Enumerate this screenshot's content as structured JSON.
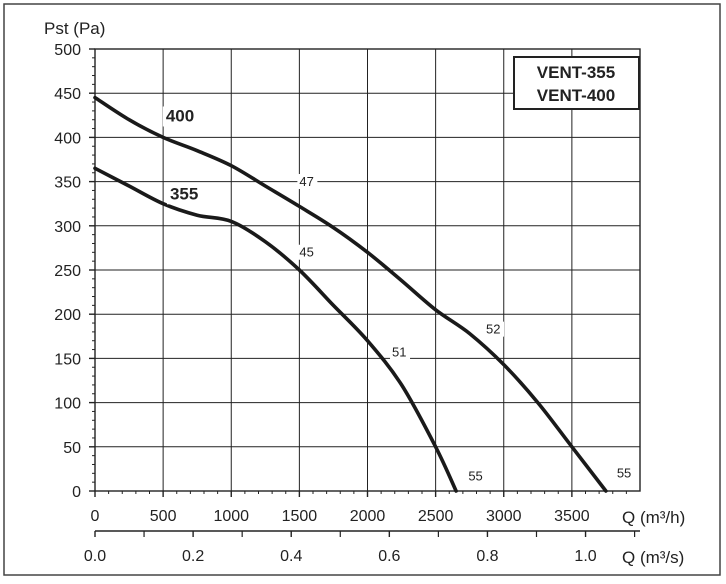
{
  "colors": {
    "curve": "#1a1a1a",
    "grid": "#222222",
    "frame": "#444444",
    "background": "#ffffff"
  },
  "chart_data": {
    "type": "line",
    "title": "",
    "ylabel": "Pst (Pa)",
    "xlabel": "Q (m³/h)",
    "xlabel_secondary": "Q (m³/s)",
    "ylim": [
      0,
      500
    ],
    "xlim": [
      0,
      4000
    ],
    "xlim_secondary": [
      0.0,
      1.111
    ],
    "yticks": [
      0,
      50,
      100,
      150,
      200,
      250,
      300,
      350,
      400,
      450,
      500
    ],
    "xticks": [
      0,
      500,
      1000,
      1500,
      2000,
      2500,
      3000,
      3500
    ],
    "xticks_secondary": [
      "0.0",
      "0.2",
      "0.4",
      "0.6",
      "0.8",
      "1.0"
    ],
    "grid": true,
    "legend": {
      "placement": "top-right",
      "entries": [
        "VENT-355",
        "VENT-400"
      ]
    },
    "series": [
      {
        "name": "400",
        "x": [
          0,
          250,
          500,
          750,
          1000,
          1250,
          1500,
          1750,
          2000,
          2250,
          2500,
          2750,
          3000,
          3250,
          3500,
          3750
        ],
        "y": [
          445,
          420,
          400,
          385,
          368,
          345,
          322,
          298,
          270,
          238,
          205,
          178,
          143,
          100,
          50,
          0
        ],
        "annotations": [
          {
            "x": 1500,
            "y": 345,
            "text": "47"
          },
          {
            "x": 2870,
            "y": 178,
            "text": "52"
          },
          {
            "x": 3830,
            "y": 15,
            "text": "55"
          }
        ]
      },
      {
        "name": "355",
        "x": [
          0,
          250,
          500,
          750,
          1000,
          1250,
          1500,
          1750,
          2000,
          2250,
          2500,
          2650
        ],
        "y": [
          365,
          345,
          325,
          312,
          305,
          282,
          250,
          210,
          170,
          120,
          50,
          0
        ],
        "annotations": [
          {
            "x": 1500,
            "y": 265,
            "text": "45"
          },
          {
            "x": 2180,
            "y": 152,
            "text": "51"
          },
          {
            "x": 2740,
            "y": 12,
            "text": "55"
          }
        ]
      }
    ]
  }
}
